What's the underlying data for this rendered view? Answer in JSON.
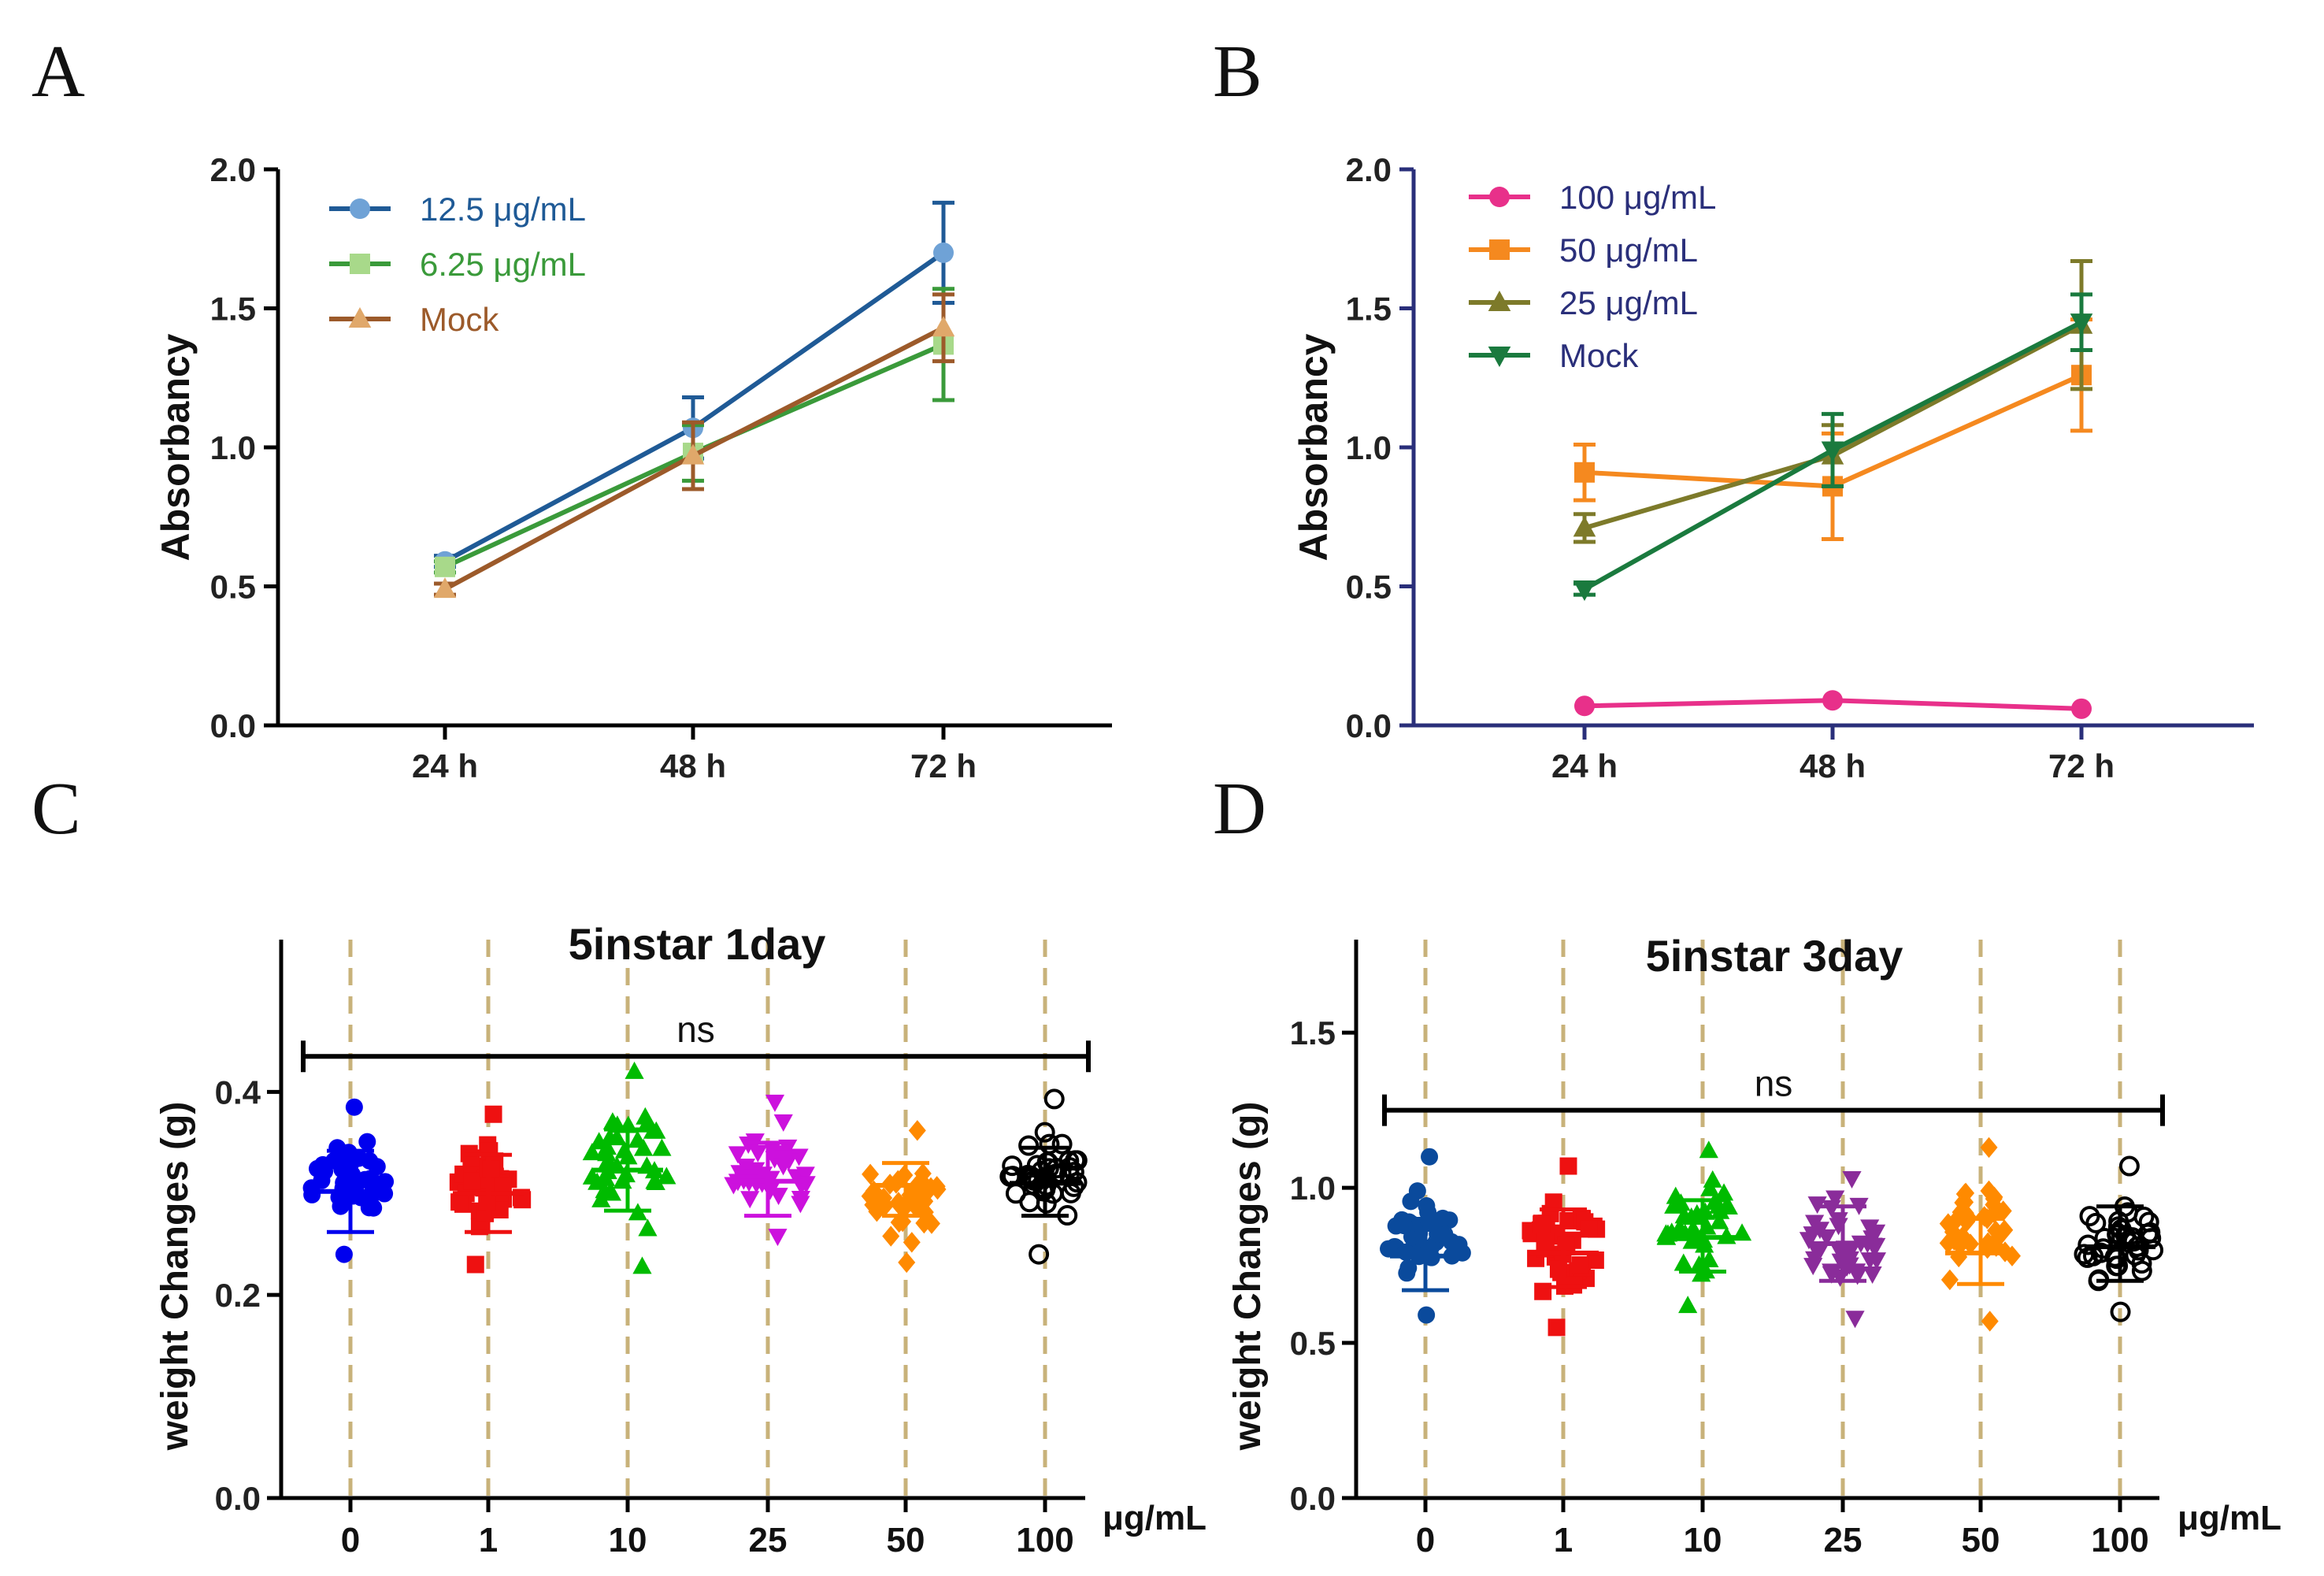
{
  "chart_data": [
    {
      "id": "A",
      "panel_label": "A",
      "type": "line",
      "ylabel": "Absorbancy",
      "ylim": [
        0,
        2.0
      ],
      "yticks": [
        "0.0",
        "0.5",
        "1.0",
        "1.5",
        "2.0"
      ],
      "categories": [
        "24 h",
        "48 h",
        "72 h"
      ],
      "series": [
        {
          "name": "12.5 μg/mL",
          "color": "#1f5a96",
          "marker": "circle",
          "marker_color": "#6fa2d6",
          "values": [
            0.59,
            1.07,
            1.7
          ],
          "err": [
            0.02,
            0.11,
            0.18
          ]
        },
        {
          "name": "6.25 μg/mL",
          "color": "#3a9a3a",
          "marker": "square",
          "marker_color": "#a8d98a",
          "values": [
            0.57,
            0.98,
            1.37
          ],
          "err": [
            0.02,
            0.1,
            0.2
          ]
        },
        {
          "name": "Mock",
          "color": "#9c5a2a",
          "marker": "triangle",
          "marker_color": "#e0a86a",
          "values": [
            0.49,
            0.97,
            1.43
          ],
          "err": [
            0.02,
            0.12,
            0.12
          ]
        }
      ]
    },
    {
      "id": "B",
      "panel_label": "B",
      "type": "line",
      "ylabel": "Absorbancy",
      "ylim": [
        0,
        2.0
      ],
      "yticks": [
        "0.0",
        "0.5",
        "1.0",
        "1.5",
        "2.0"
      ],
      "categories": [
        "24 h",
        "48 h",
        "72 h"
      ],
      "series": [
        {
          "name": "100 μg/mL",
          "color": "#e8308a",
          "marker": "circle",
          "marker_color": "#e8308a",
          "values": [
            0.07,
            0.09,
            0.06
          ],
          "err": [
            0.0,
            0.0,
            0.0
          ]
        },
        {
          "name": "50 μg/mL",
          "color": "#f5891f",
          "marker": "square",
          "marker_color": "#f5891f",
          "values": [
            0.91,
            0.86,
            1.26
          ],
          "err": [
            0.1,
            0.19,
            0.2
          ]
        },
        {
          "name": "25 μg/mL",
          "color": "#7d7a2a",
          "marker": "triangle",
          "marker_color": "#7d7a2a",
          "values": [
            0.71,
            0.97,
            1.44
          ],
          "err": [
            0.05,
            0.11,
            0.23
          ]
        },
        {
          "name": "Mock",
          "color": "#1a7a3e",
          "marker": "triangle-down",
          "marker_color": "#1a7a3e",
          "values": [
            0.49,
            0.99,
            1.45
          ],
          "err": [
            0.02,
            0.13,
            0.1
          ]
        }
      ]
    },
    {
      "id": "C",
      "panel_label": "C",
      "type": "scatter",
      "title": "5instar 1day",
      "ylabel": "weight Changes (g)",
      "xunit": "μg/mL",
      "ylim": [
        0,
        0.55
      ],
      "yticks": [
        {
          "v": 0.0,
          "label": "0.0"
        },
        {
          "v": 0.2,
          "label": "0.2"
        },
        {
          "v": 0.4,
          "label": "0.4"
        }
      ],
      "annotation": "ns",
      "bracket_y": 0.435,
      "categories": [
        "0",
        "1",
        "10",
        "25",
        "50",
        "100"
      ],
      "groups": [
        {
          "x": "0",
          "color": "#0000ee",
          "marker": "circle",
          "filled": true,
          "mean": 0.302,
          "lo": 0.262,
          "hi": 0.342,
          "min": 0.24,
          "max": 0.385
        },
        {
          "x": "1",
          "color": "#ee1111",
          "marker": "square",
          "filled": true,
          "mean": 0.3,
          "lo": 0.262,
          "hi": 0.338,
          "min": 0.23,
          "max": 0.378
        },
        {
          "x": "10",
          "color": "#00bb00",
          "marker": "triangle",
          "filled": true,
          "mean": 0.323,
          "lo": 0.283,
          "hi": 0.363,
          "min": 0.228,
          "max": 0.42
        },
        {
          "x": "25",
          "color": "#cc11dd",
          "marker": "triangle-down",
          "filled": true,
          "mean": 0.312,
          "lo": 0.278,
          "hi": 0.35,
          "min": 0.258,
          "max": 0.39
        },
        {
          "x": "50",
          "color": "#ff8a00",
          "marker": "diamond",
          "filled": true,
          "mean": 0.308,
          "lo": 0.278,
          "hi": 0.33,
          "min": 0.232,
          "max": 0.362
        },
        {
          "x": "100",
          "color": "#000000",
          "marker": "circle",
          "filled": false,
          "mean": 0.31,
          "lo": 0.278,
          "hi": 0.345,
          "min": 0.24,
          "max": 0.393
        }
      ]
    },
    {
      "id": "D",
      "panel_label": "D",
      "type": "scatter",
      "title": "5instar 3day",
      "ylabel": "weight Changes (g)",
      "xunit": "μg/mL",
      "ylim": [
        0,
        1.8
      ],
      "yticks": [
        {
          "v": 0.0,
          "label": "0.0"
        },
        {
          "v": 0.5,
          "label": "0.5"
        },
        {
          "v": 1.0,
          "label": "1.0"
        },
        {
          "v": 1.5,
          "label": "1.5"
        }
      ],
      "annotation": "ns",
      "bracket_y": 1.25,
      "categories": [
        "0",
        "1",
        "10",
        "25",
        "50",
        "100"
      ],
      "groups": [
        {
          "x": "0",
          "color": "#0a4a9c",
          "marker": "circle",
          "filled": true,
          "mean": 0.78,
          "lo": 0.67,
          "hi": 0.9,
          "min": 0.59,
          "max": 1.1
        },
        {
          "x": "1",
          "color": "#ee1111",
          "marker": "square",
          "filled": true,
          "mean": 0.79,
          "lo": 0.68,
          "hi": 0.93,
          "min": 0.55,
          "max": 1.07
        },
        {
          "x": "10",
          "color": "#00bb00",
          "marker": "triangle",
          "filled": true,
          "mean": 0.84,
          "lo": 0.73,
          "hi": 0.96,
          "min": 0.62,
          "max": 1.12
        },
        {
          "x": "25",
          "color": "#8a2c9a",
          "marker": "triangle-down",
          "filled": true,
          "mean": 0.82,
          "lo": 0.7,
          "hi": 0.94,
          "min": 0.58,
          "max": 1.03
        },
        {
          "x": "50",
          "color": "#ff8a00",
          "marker": "diamond",
          "filled": true,
          "mean": 0.79,
          "lo": 0.69,
          "hi": 0.9,
          "min": 0.57,
          "max": 1.13
        },
        {
          "x": "100",
          "color": "#000000",
          "marker": "circle",
          "filled": false,
          "mean": 0.81,
          "lo": 0.7,
          "hi": 0.94,
          "min": 0.6,
          "max": 1.07
        }
      ]
    }
  ]
}
